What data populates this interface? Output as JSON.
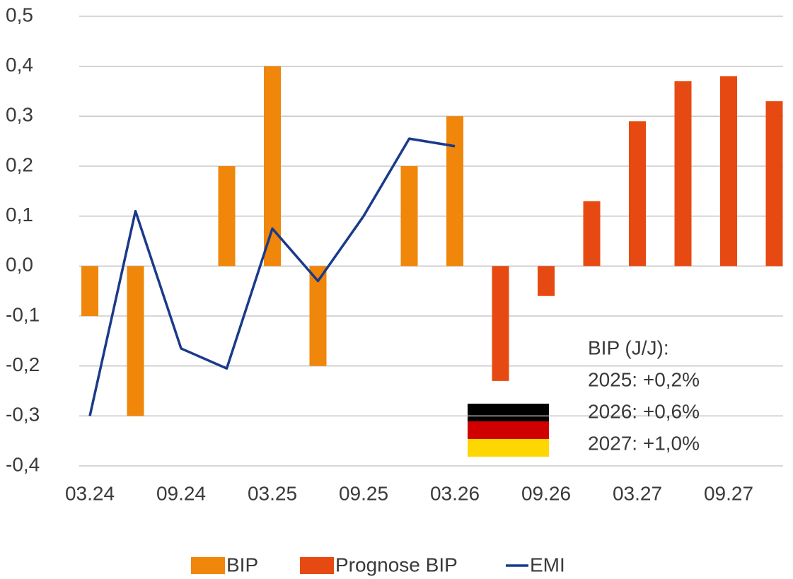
{
  "chart_data": {
    "type": "bar",
    "categories": [
      "03.24",
      null,
      "09.24",
      null,
      "03.25",
      null,
      "09.25",
      null,
      "03.26",
      null,
      "09.26",
      null,
      "03.27",
      null,
      "09.27",
      null
    ],
    "series": [
      {
        "name": "BIP",
        "type": "bar",
        "color": "#f0860a",
        "values": [
          -0.1,
          -0.3,
          null,
          0.2,
          0.4,
          -0.2,
          null,
          0.2,
          0.3,
          null,
          null,
          null,
          null,
          null,
          null,
          null
        ]
      },
      {
        "name": "Prognose BIP",
        "type": "bar",
        "color": "#e64a12",
        "values": [
          null,
          null,
          null,
          null,
          null,
          null,
          null,
          null,
          null,
          -0.23,
          -0.06,
          0.13,
          0.29,
          0.37,
          0.38,
          0.33
        ]
      },
      {
        "name": "EMI",
        "type": "line",
        "color": "#1a3a8a",
        "values": [
          -0.3,
          0.11,
          -0.165,
          -0.205,
          0.075,
          -0.03,
          0.1,
          0.255,
          0.24,
          null,
          null,
          null,
          null,
          null,
          null,
          null
        ]
      }
    ],
    "ylim": [
      -0.4,
      0.5
    ],
    "yticks": [
      {
        "value": -0.4,
        "label": "-0,4"
      },
      {
        "value": -0.3,
        "label": "-0,3"
      },
      {
        "value": -0.2,
        "label": "-0,2"
      },
      {
        "value": -0.1,
        "label": "-0,1"
      },
      {
        "value": 0,
        "label": "0,0"
      },
      {
        "value": 0.1,
        "label": "0,1"
      },
      {
        "value": 0.2,
        "label": "0,2"
      },
      {
        "value": 0.3,
        "label": "0,3"
      },
      {
        "value": 0.4,
        "label": "0,4"
      },
      {
        "value": 0.5,
        "label": "0,5"
      }
    ],
    "grid": true,
    "legend": "bottom",
    "annotation": [
      "BIP (J/J):",
      "2025:  +0,2%",
      "2026:  +0,6%",
      "2027:  +1,0%"
    ]
  }
}
